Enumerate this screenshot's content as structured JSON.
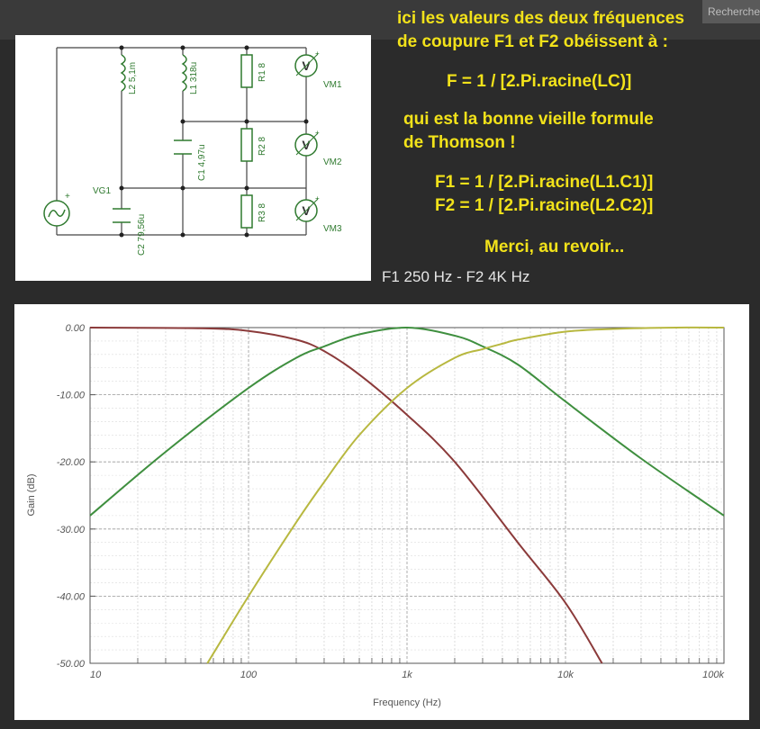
{
  "header": {
    "search_tab": "Rechercher"
  },
  "schematic": {
    "components": {
      "L2": "L2 5,1m",
      "L1": "L1 318u",
      "R1": "R1 8",
      "R2": "R2 8",
      "R3": "R3 8",
      "C1": "C1 4,97u",
      "C2": "C2 79,56u",
      "VG1": "VG1",
      "VM1": "VM1",
      "VM2": "VM2",
      "VM3": "VM3",
      "meter_symbol": "V",
      "plus": "+"
    }
  },
  "notes": {
    "line1": "ici les valeurs des deux fréquences",
    "line2": "de coupure F1 et F2 obéissent à :",
    "formula": "F = 1 / [2.Pi.racine(LC)]",
    "line3": "qui est la bonne vieille formule",
    "line4": "de Thomson !",
    "f1": "F1 = 1 / [2.Pi.racine(L1.C1)]",
    "f2": "F2 = 1 / [2.Pi.racine(L2.C2)]",
    "bye": "Merci, au revoir..."
  },
  "caption": "F1 250 Hz -  F2 4K Hz",
  "chart_data": {
    "type": "line",
    "xlabel": "Frequency (Hz)",
    "ylabel": "Gain (dB)",
    "x_scale": "log",
    "xlim": [
      10,
      100000
    ],
    "ylim": [
      -50,
      0
    ],
    "x_ticks": [
      10,
      100,
      1000,
      10000,
      100000
    ],
    "x_tick_labels": [
      "10",
      "100",
      "1k",
      "10k",
      "100k"
    ],
    "y_ticks": [
      0,
      -10,
      -20,
      -30,
      -40,
      -50
    ],
    "y_tick_labels": [
      "0.00",
      "-10.00",
      "-20.00",
      "-30.00",
      "-40.00",
      "-50.00"
    ],
    "grid": true,
    "series": [
      {
        "color": "#8b3a3a",
        "x": [
          10,
          50,
          100,
          200,
          300,
          500,
          1000,
          2000,
          5000,
          10000,
          17000
        ],
        "y": [
          0,
          -0.1,
          -0.5,
          -1.8,
          -3.5,
          -7,
          -13,
          -20,
          -32,
          -41,
          -50
        ]
      },
      {
        "color": "#3f8f3f",
        "x": [
          10,
          30,
          100,
          200,
          300,
          500,
          1000,
          2000,
          3000,
          5000,
          10000,
          30000,
          100000
        ],
        "y": [
          -28,
          -18.5,
          -9,
          -4.5,
          -2.8,
          -1,
          0,
          -1.2,
          -2.8,
          -5.5,
          -11,
          -19.5,
          -28
        ]
      },
      {
        "color": "#b8b840",
        "x": [
          55,
          100,
          200,
          300,
          500,
          1000,
          2000,
          3000,
          4000,
          5000,
          10000,
          20000,
          50000,
          100000
        ],
        "y": [
          -50,
          -40,
          -29,
          -23,
          -16,
          -9,
          -4.5,
          -3.2,
          -2.4,
          -1.8,
          -0.6,
          -0.2,
          0,
          0
        ]
      }
    ]
  }
}
